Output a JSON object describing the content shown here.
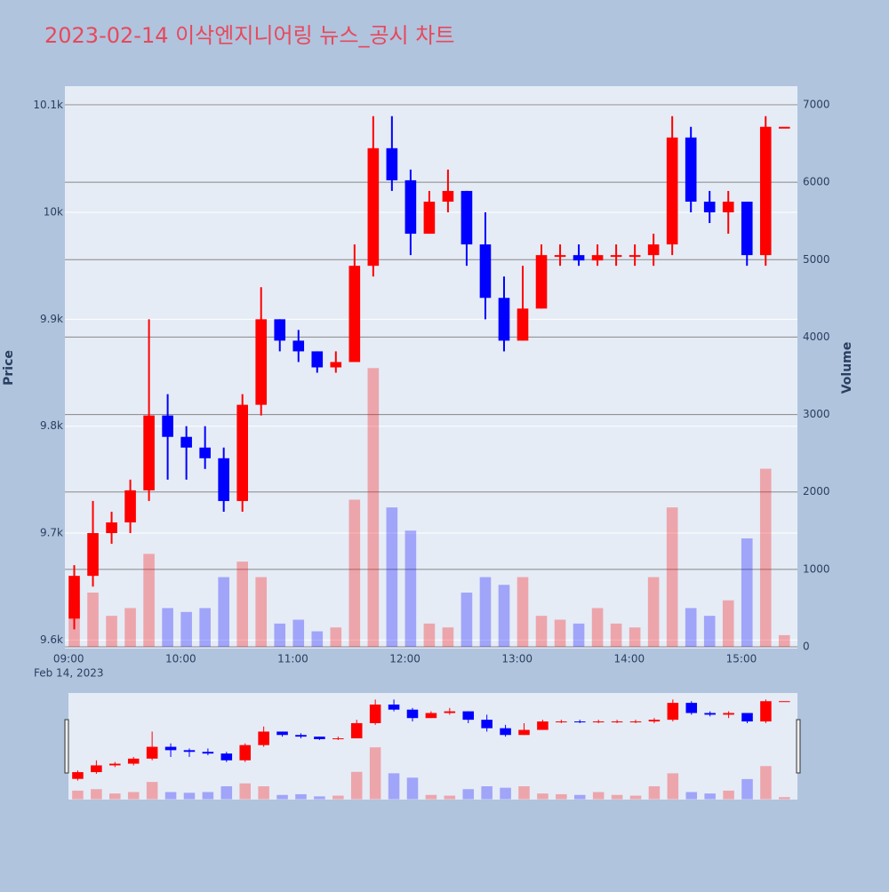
{
  "chart_data": {
    "type": "candlestick",
    "title": "2023-02-14 이삭엔지니어링 뉴스_공시 차트",
    "y_label": "Price",
    "y2_label": "Volume",
    "date_label": "Feb 14, 2023",
    "x": [
      "09:00",
      "09:10",
      "09:20",
      "09:30",
      "09:40",
      "09:50",
      "10:00",
      "10:10",
      "10:20",
      "10:30",
      "10:40",
      "10:50",
      "11:00",
      "11:10",
      "11:20",
      "11:30",
      "11:40",
      "11:50",
      "12:00",
      "12:10",
      "12:20",
      "12:30",
      "12:40",
      "12:50",
      "13:00",
      "13:10",
      "13:20",
      "13:30",
      "13:40",
      "13:50",
      "14:00",
      "14:10",
      "14:20",
      "14:30",
      "14:40",
      "14:50",
      "15:00",
      "15:10",
      "15:20"
    ],
    "open": [
      9620,
      9660,
      9700,
      9710,
      9740,
      9810,
      9790,
      9780,
      9770,
      9730,
      9820,
      9900,
      9880,
      9870,
      9855,
      9860,
      9950,
      10060,
      10030,
      9980,
      10010,
      10020,
      9970,
      9920,
      9880,
      9910,
      9960,
      9960,
      9955,
      9960,
      9960,
      9960,
      9970,
      10070,
      10010,
      10000,
      10010,
      9960,
      10080
    ],
    "high": [
      9670,
      9730,
      9720,
      9750,
      9900,
      9830,
      9800,
      9800,
      9780,
      9830,
      9930,
      9900,
      9890,
      9870,
      9870,
      9970,
      10090,
      10090,
      10040,
      10020,
      10040,
      10020,
      10000,
      9940,
      9950,
      9970,
      9970,
      9970,
      9970,
      9970,
      9970,
      9980,
      10090,
      10080,
      10020,
      10020,
      10010,
      10090,
      10080
    ],
    "low": [
      9610,
      9650,
      9690,
      9700,
      9730,
      9750,
      9750,
      9760,
      9720,
      9720,
      9810,
      9870,
      9860,
      9850,
      9850,
      9860,
      9940,
      10020,
      9960,
      9980,
      10000,
      9950,
      9900,
      9870,
      9880,
      9910,
      9950,
      9950,
      9950,
      9950,
      9950,
      9950,
      9960,
      10000,
      9990,
      9980,
      9950,
      9950,
      10080
    ],
    "close": [
      9660,
      9700,
      9710,
      9740,
      9810,
      9790,
      9780,
      9770,
      9730,
      9820,
      9900,
      9880,
      9870,
      9855,
      9860,
      9950,
      10060,
      10030,
      9980,
      10010,
      10020,
      9970,
      9920,
      9880,
      9910,
      9960,
      9960,
      9955,
      9960,
      9960,
      9960,
      9970,
      10070,
      10010,
      10000,
      10010,
      9960,
      10080,
      10080
    ],
    "volume": [
      600,
      700,
      400,
      500,
      1200,
      500,
      450,
      500,
      900,
      1100,
      900,
      300,
      350,
      200,
      250,
      1900,
      3600,
      1800,
      1500,
      300,
      250,
      700,
      900,
      800,
      900,
      400,
      350,
      300,
      500,
      300,
      250,
      900,
      1800,
      500,
      400,
      600,
      1400,
      2300,
      150
    ],
    "increasing_color": "#ff0000",
    "decreasing_color": "#0000ff",
    "xlim": [
      "08:58",
      "15:30"
    ],
    "xticks": [
      "09:00",
      "10:00",
      "11:00",
      "12:00",
      "13:00",
      "14:00",
      "15:00"
    ],
    "ylim": [
      9592,
      10118
    ],
    "yticks": [
      {
        "value": 9600,
        "label": "9.6k"
      },
      {
        "value": 9700,
        "label": "9.7k"
      },
      {
        "value": 9800,
        "label": "9.8k"
      },
      {
        "value": 9900,
        "label": "9.9k"
      },
      {
        "value": 10000,
        "label": "10k"
      },
      {
        "value": 10100,
        "label": "10.1k"
      }
    ],
    "y2lim": [
      -23,
      7241
    ],
    "y2ticks": [
      0,
      1000,
      2000,
      3000,
      4000,
      5000,
      6000,
      7000
    ],
    "grid": true,
    "rangeslider": true
  }
}
